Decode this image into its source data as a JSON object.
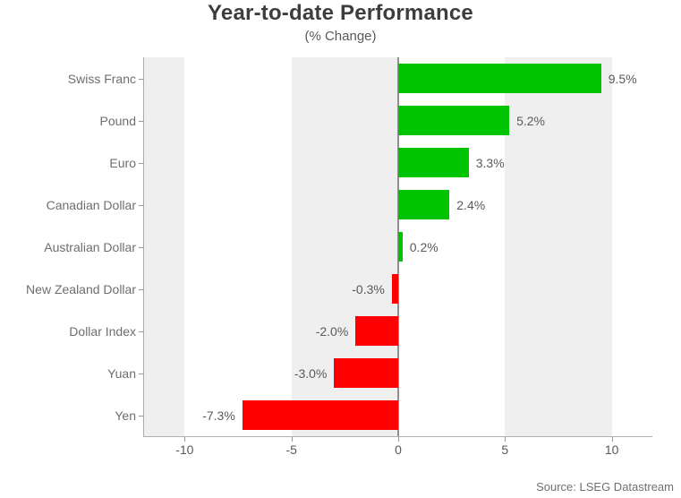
{
  "header": {
    "title": "Year-to-date Performance",
    "subtitle": "(% Change)"
  },
  "source": "Source: LSEG Datastream",
  "chart_data": {
    "type": "bar",
    "orientation": "horizontal",
    "title": "Year-to-date Performance",
    "subtitle": "(% Change)",
    "categories": [
      "Swiss Franc",
      "Pound",
      "Euro",
      "Canadian Dollar",
      "Australian Dollar",
      "New Zealand Dollar",
      "Dollar Index",
      "Yuan",
      "Yen"
    ],
    "values": [
      9.5,
      5.2,
      3.3,
      2.4,
      0.2,
      -0.3,
      -2.0,
      -3.0,
      -7.3
    ],
    "value_labels": [
      "9.5%",
      "5.2%",
      "3.3%",
      "2.4%",
      "0.2%",
      "-0.3%",
      "-2.0%",
      "-3.0%",
      "-7.3%"
    ],
    "xlabel": "",
    "ylabel": "",
    "axis": {
      "min": -11.9,
      "max": 11.9,
      "ticks": [
        -10,
        -5,
        0,
        5,
        10
      ],
      "tick_labels": [
        "-10",
        "-5",
        "0",
        "5",
        "10"
      ]
    },
    "grid": "off",
    "legend": "none",
    "colors": {
      "positive_bar": "#00c400",
      "negative_bar": "#fe0000",
      "stripe": "#efefef",
      "zero_line": "#8f8f8f",
      "axis_line": "#ababab",
      "tick_mark": "#9a9a9a",
      "category_text": "#6e6e6e",
      "value_text": "#5a5a5a",
      "title_text": "#3d3d3d",
      "subtitle_text": "#595959",
      "source_text": "#707070"
    }
  }
}
